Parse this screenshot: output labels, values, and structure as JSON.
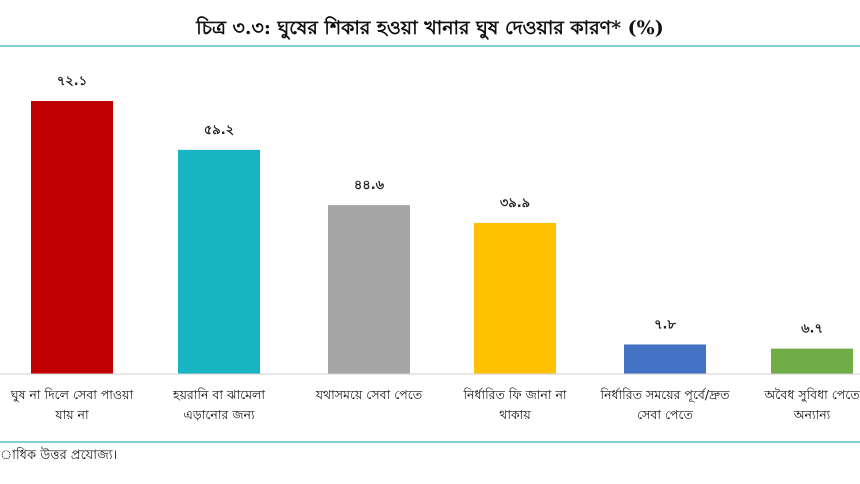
{
  "chart_data": {
    "type": "bar",
    "title": "চিত্র ৩.৩: ঘুষের শিকার হওয়া খানার ঘুষ দেওয়ার কারণ* (%)",
    "categories": [
      [
        "ঘুষ না দিলে সেবা পাওয়া",
        "যায় না"
      ],
      [
        "হয়রানি বা ঝামেলা",
        "এড়ানোর জন্য"
      ],
      [
        "যথাসময়ে সেবা পেতে"
      ],
      [
        "নির্ধারিত ফি জানা না",
        "থাকায়"
      ],
      [
        "নির্ধারিত সময়ের পূর্বে/দ্রুত",
        "সেবা পেতে"
      ],
      [
        "অবৈধ সুবিধা পেতে",
        "অন্যান্য"
      ]
    ],
    "values": [
      72.1,
      59.2,
      44.6,
      39.9,
      7.8,
      6.7
    ],
    "value_labels": [
      "৭২.১",
      "৫৯.২",
      "৪৪.৬",
      "৩৯.৯",
      "৭.৮",
      "৬.৭"
    ],
    "colors": [
      "#c00000",
      "#17b5c3",
      "#a6a6a6",
      "#ffc000",
      "#4472c4",
      "#70ad47"
    ],
    "ylim": [
      0,
      72.1
    ],
    "xlabel": "",
    "ylabel": "",
    "grid": false,
    "legend": "none"
  },
  "footnote": "াধিক উত্তর প্রযোজ্য।"
}
